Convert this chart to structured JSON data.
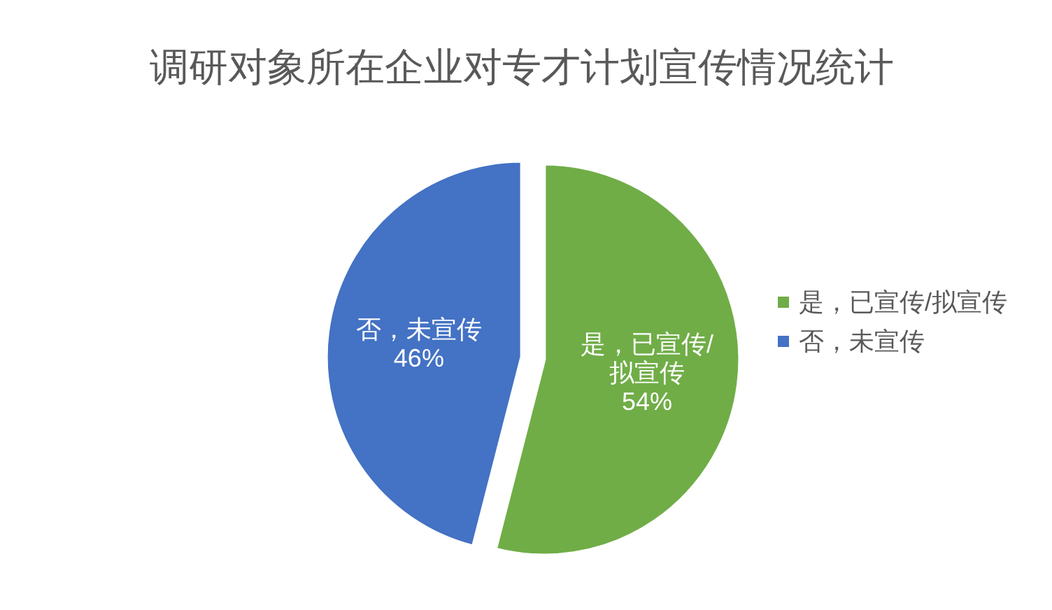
{
  "chart_data": {
    "type": "pie",
    "title": "调研对象所在企业对专才计划宣传情况统计",
    "categories": [
      "是，已宣传/拟宣传",
      "否，未宣传"
    ],
    "values": [
      54,
      46
    ],
    "colors": [
      "#70ad47",
      "#4472c4"
    ],
    "value_labels": [
      "54%",
      "46%"
    ],
    "legend": "right"
  }
}
